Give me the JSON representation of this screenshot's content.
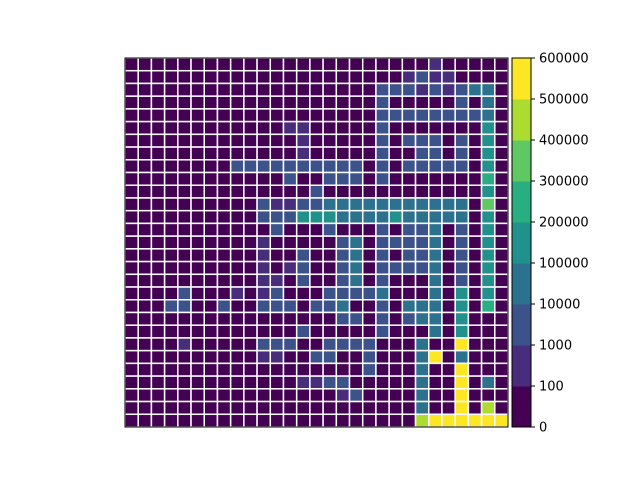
{
  "chart_data": {
    "type": "heatmap",
    "title": "",
    "xlabel": "",
    "ylabel": "",
    "rows": 29,
    "cols": 29,
    "grid": true,
    "grid_color": "#ffffff",
    "legend": "colorbar-right",
    "colorbar": {
      "boundaries": [
        0,
        100,
        1000,
        10000,
        100000,
        200000,
        300000,
        400000,
        500000,
        600000
      ],
      "tick_labels": [
        "0",
        "100",
        "1000",
        "10000",
        "100000",
        "200000",
        "300000",
        "400000",
        "500000",
        "600000"
      ],
      "colors": [
        "#440154",
        "#472d7b",
        "#3b528b",
        "#2c728e",
        "#21918c",
        "#28ae80",
        "#5ec962",
        "#addc30",
        "#fde725"
      ]
    },
    "levels_legend": "cell value = color band index 0..8 (band k spans boundaries[k] to boundaries[k+1])",
    "levels": [
      "00000000000000000000000100000",
      "00000000000000000000012110000",
      "00000000000000000002221212330",
      "00000000000000000002000002030",
      "00000000000000000002222222230",
      "00000000000011000002000000040",
      "00000000000001000002022202040",
      "00000000000001000002002202040",
      "00000000222222222202022222040",
      "00000000000020022202000000050",
      "00000000000000200000000000040",
      "00000000002112233333333333060",
      "00000000002224443333433333040",
      "00000000000200020002022302040",
      "00000000001000002302222302040",
      "00000000001002002302022302040",
      "00000000001012002302222302040",
      "00000000001102002302000302040",
      "00002000101200022223000304040",
      "00022002002220223002033304050",
      "00000000000000002202023304000",
      "00000000000002000002000304000",
      "00001000002220022220003008000",
      "00000000001100220020003803000",
      "00000000000000000020003008000",
      "00000000000001122000003008030",
      "00000000000000001200003008000",
      "00000000000000000000003008070",
      "00000000000000000000007888888"
    ]
  }
}
